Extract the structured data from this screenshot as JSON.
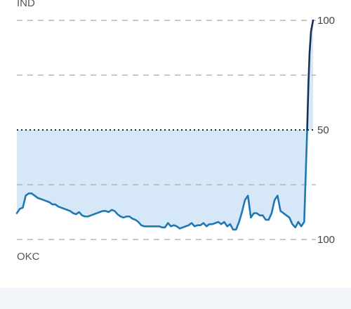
{
  "chart_data": {
    "type": "area",
    "title": "",
    "xlabel": "",
    "ylabel": "",
    "top_team": "IND",
    "bottom_team": "OKC",
    "ylim": [
      0,
      100
    ],
    "y_ticks": [
      {
        "value": 100,
        "label": "100"
      },
      {
        "value": 50,
        "label": "50"
      },
      {
        "value": 0,
        "label": "100"
      }
    ],
    "dashed_gridlines": [
      100,
      75,
      25,
      0
    ],
    "dotted_midline": 50,
    "grid": true,
    "x_range": [
      0,
      100
    ],
    "series": [
      {
        "values": [
          [
            0,
            12
          ],
          [
            1,
            14
          ],
          [
            2,
            14.5
          ],
          [
            3,
            20
          ],
          [
            4,
            21
          ],
          [
            5,
            21
          ],
          [
            6,
            20
          ],
          [
            7,
            19
          ],
          [
            8,
            18.5
          ],
          [
            9,
            18
          ],
          [
            10,
            17.5
          ],
          [
            11,
            17
          ],
          [
            12,
            16
          ],
          [
            13,
            16
          ],
          [
            14,
            15
          ],
          [
            15,
            14.5
          ],
          [
            16,
            14
          ],
          [
            17,
            13.5
          ],
          [
            18,
            13
          ],
          [
            19,
            12
          ],
          [
            20,
            11.5
          ],
          [
            21,
            12.5
          ],
          [
            22,
            11
          ],
          [
            23,
            10.5
          ],
          [
            24,
            10.5
          ],
          [
            25,
            11
          ],
          [
            26,
            11.5
          ],
          [
            27,
            12
          ],
          [
            28,
            12.5
          ],
          [
            29,
            13
          ],
          [
            30,
            13
          ],
          [
            31,
            12.5
          ],
          [
            32,
            13.5
          ],
          [
            33,
            13
          ],
          [
            34,
            11.5
          ],
          [
            35,
            10.5
          ],
          [
            36,
            10
          ],
          [
            37,
            10.5
          ],
          [
            38,
            10.5
          ],
          [
            39,
            9.5
          ],
          [
            40,
            9
          ],
          [
            41,
            8
          ],
          [
            42,
            6.5
          ],
          [
            43,
            6
          ],
          [
            44,
            6
          ],
          [
            45,
            6
          ],
          [
            46,
            6
          ],
          [
            47,
            6
          ],
          [
            48,
            6
          ],
          [
            49,
            5.5
          ],
          [
            50,
            5.5
          ],
          [
            51,
            7.5
          ],
          [
            52,
            6
          ],
          [
            53,
            6.5
          ],
          [
            54,
            6
          ],
          [
            55,
            5
          ],
          [
            56,
            5.5
          ],
          [
            57,
            6
          ],
          [
            58,
            6.5
          ],
          [
            59,
            7.5
          ],
          [
            60,
            6
          ],
          [
            61,
            6.5
          ],
          [
            62,
            6.5
          ],
          [
            63,
            7.5
          ],
          [
            64,
            6
          ],
          [
            65,
            7
          ],
          [
            66,
            7
          ],
          [
            67,
            7.5
          ],
          [
            68,
            8
          ],
          [
            69,
            7
          ],
          [
            70,
            8
          ],
          [
            71,
            6
          ],
          [
            72,
            7
          ],
          [
            73,
            4.5
          ],
          [
            74,
            4.5
          ],
          [
            75,
            8
          ],
          [
            76,
            12.5
          ],
          [
            77,
            18
          ],
          [
            78,
            20
          ],
          [
            79,
            10
          ],
          [
            80,
            12
          ],
          [
            81,
            12
          ],
          [
            82,
            11
          ],
          [
            83,
            11
          ],
          [
            84,
            9
          ],
          [
            85,
            9
          ],
          [
            86,
            12
          ],
          [
            87,
            18
          ],
          [
            88,
            20
          ],
          [
            89,
            13
          ],
          [
            90,
            12
          ],
          [
            91,
            11
          ],
          [
            92,
            10
          ],
          [
            93,
            7
          ],
          [
            94,
            5.5
          ],
          [
            95,
            8
          ],
          [
            96,
            6
          ],
          [
            97,
            8
          ],
          [
            98,
            50
          ],
          [
            98.4,
            70
          ],
          [
            98.8,
            85
          ],
          [
            99.3,
            95
          ],
          [
            100,
            100
          ]
        ]
      }
    ],
    "colors": {
      "line": "#1e78b4",
      "line_top": "#14325a",
      "fill": "#d6e8f7",
      "grid": "#aaaaaa",
      "midline": "#222222"
    }
  }
}
